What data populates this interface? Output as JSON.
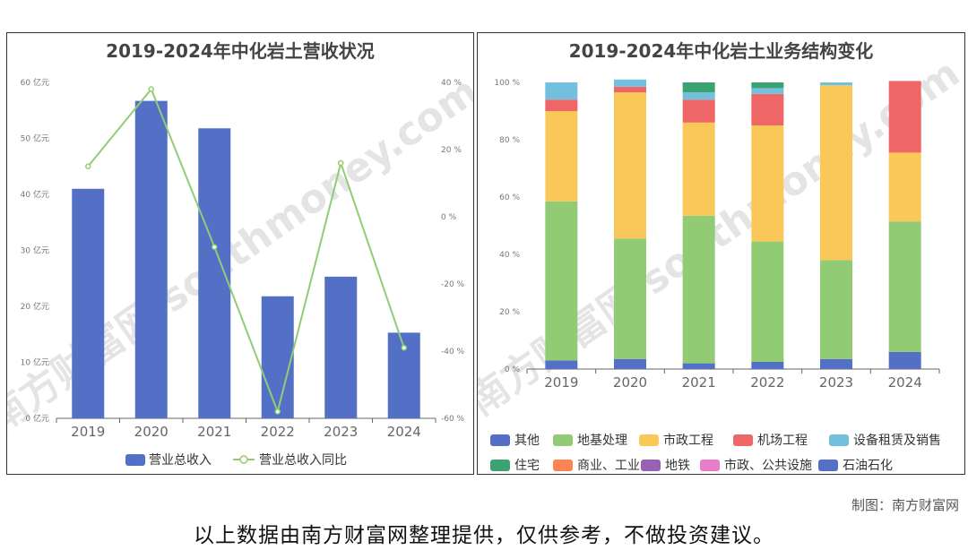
{
  "chart_data": [
    {
      "type": "bar",
      "title": "2019-2024年中化岩土营收状况",
      "categories": [
        "2019",
        "2020",
        "2021",
        "2022",
        "2023",
        "2024"
      ],
      "series": [
        {
          "name": "营业总收入",
          "type": "bar",
          "axis": "left",
          "values": [
            41,
            56.7,
            51.8,
            21.8,
            25.3,
            15.3
          ]
        },
        {
          "name": "营业总收入同比",
          "type": "line",
          "axis": "right",
          "values": [
            15,
            38,
            -9,
            -58,
            16,
            -39
          ]
        }
      ],
      "y_left": {
        "ticks": [
          "0 亿元",
          "10 亿元",
          "20 亿元",
          "30 亿元",
          "40 亿元",
          "50 亿元",
          "60 亿元"
        ],
        "ylim": [
          0,
          60
        ]
      },
      "y_right": {
        "ticks": [
          "-60 %",
          "-40 %",
          "-20 %",
          "0 %",
          "20 %",
          "40 %"
        ],
        "ylim": [
          -60,
          40
        ]
      },
      "legend": "bottom",
      "colors": {
        "bar": "#5470c6",
        "line": "#91cc75"
      }
    },
    {
      "type": "bar",
      "stacked": true,
      "percent": true,
      "title": "2019-2024年中化岩土业务结构变化",
      "categories": [
        "2019",
        "2020",
        "2021",
        "2022",
        "2023",
        "2024"
      ],
      "y_ticks": [
        "0 %",
        "20 %",
        "40 %",
        "60 %",
        "80 %",
        "100 %"
      ],
      "ylim": [
        0,
        100
      ],
      "series": [
        {
          "name": "其他",
          "color": "#5470c6",
          "values": [
            3,
            3.5,
            2,
            2.5,
            3.5,
            6
          ]
        },
        {
          "name": "地基处理",
          "color": "#91cc75",
          "values": [
            55.5,
            42,
            51.5,
            42,
            34.5,
            45.5
          ]
        },
        {
          "name": "市政工程",
          "color": "#fac858",
          "values": [
            31.5,
            51,
            32.5,
            40.5,
            61,
            24
          ]
        },
        {
          "name": "机场工程",
          "color": "#ee6666",
          "values": [
            4,
            2,
            8,
            11,
            0,
            25
          ]
        },
        {
          "name": "设备租赁及销售",
          "color": "#73c0de",
          "values": [
            6,
            2.5,
            2.5,
            2,
            1,
            0
          ]
        },
        {
          "name": "住宅",
          "color": "#3ba272",
          "values": [
            0,
            0,
            3.5,
            2,
            0,
            0
          ]
        },
        {
          "name": "商业、工业",
          "color": "#fc8452",
          "values": [
            0,
            0,
            0,
            0,
            0,
            0
          ]
        },
        {
          "name": "地铁",
          "color": "#9a60b4",
          "values": [
            0,
            0,
            0,
            0,
            0,
            0
          ]
        },
        {
          "name": "市政、公共设施",
          "color": "#ea7ccc",
          "values": [
            0,
            0,
            0,
            0,
            0,
            0
          ]
        },
        {
          "name": "石油石化",
          "color": "#5470c6",
          "values": [
            0,
            0,
            0,
            0,
            0,
            0
          ]
        }
      ],
      "legend": "bottom"
    }
  ],
  "watermark": "南方财富网 southmoney.com",
  "credit": "制图：南方财富网",
  "footer": "以上数据由南方财富网整理提供，仅供参考，不做投资建议。"
}
